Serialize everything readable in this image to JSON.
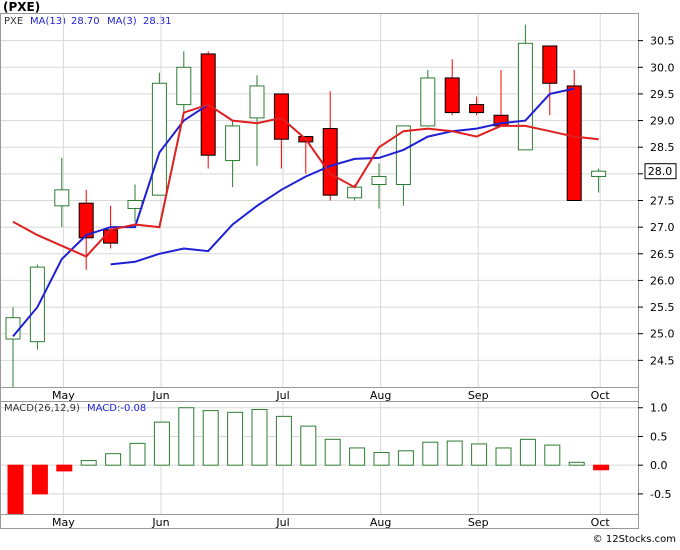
{
  "header": {
    "title": "(PXE)",
    "legend": {
      "symbol": "PXE",
      "ma13_label": "MA(13)",
      "ma13_value": "28.70",
      "ma3_label": "MA(3)",
      "ma3_value": "28.31"
    },
    "price_tag": "28.0"
  },
  "macd_legend": {
    "label": "MACD(26,12,9)",
    "value_label": "MACD:-0.08"
  },
  "footer": {
    "credit": "© 12Stocks.com"
  },
  "colors": {
    "up": "#2e7d32",
    "down": "#ff0000",
    "ma13": "#1f1fd6",
    "ma3": "#e02020",
    "macd_pos": "#2e7d32",
    "macd_neg": "#ff0000"
  },
  "chart_data": [
    {
      "type": "candlestick",
      "ylim": [
        24.0,
        31.0
      ],
      "yticks": [
        24.5,
        25.0,
        25.5,
        26.0,
        26.5,
        27.0,
        27.5,
        28.0,
        28.5,
        29.0,
        29.5,
        30.0,
        30.5
      ],
      "ytick_labels": [
        "24.5",
        "25.0",
        "25.5",
        "26.0",
        "26.5",
        "27.0",
        "27.5",
        "28.0",
        "28.5",
        "29.0",
        "29.5",
        "30.0",
        "30.5"
      ],
      "xtick_labels": [
        "May",
        "Jun",
        "Jul",
        "Aug",
        "Sep",
        "Oct"
      ],
      "xtick_index": [
        1,
        5,
        10,
        14,
        18,
        23
      ],
      "grid": true,
      "candles": [
        {
          "o": 24.9,
          "h": 25.5,
          "l": 24.0,
          "c": 25.3
        },
        {
          "o": 24.85,
          "h": 26.3,
          "l": 24.7,
          "c": 26.25
        },
        {
          "o": 27.4,
          "h": 28.3,
          "l": 27.0,
          "c": 27.7
        },
        {
          "o": 27.45,
          "h": 27.7,
          "l": 26.2,
          "c": 26.8
        },
        {
          "o": 26.95,
          "h": 27.4,
          "l": 26.6,
          "c": 26.7
        },
        {
          "o": 27.35,
          "h": 27.8,
          "l": 27.1,
          "c": 27.5
        },
        {
          "o": 27.6,
          "h": 29.9,
          "l": 27.6,
          "c": 29.7
        },
        {
          "o": 29.3,
          "h": 30.3,
          "l": 29.15,
          "c": 30.0
        },
        {
          "o": 30.25,
          "h": 30.3,
          "l": 28.1,
          "c": 28.35
        },
        {
          "o": 28.25,
          "h": 29.0,
          "l": 27.75,
          "c": 28.9
        },
        {
          "o": 29.05,
          "h": 29.85,
          "l": 28.15,
          "c": 29.65
        },
        {
          "o": 29.5,
          "h": 29.5,
          "l": 28.1,
          "c": 28.65
        },
        {
          "o": 28.7,
          "h": 28.7,
          "l": 28.0,
          "c": 28.6
        },
        {
          "o": 28.85,
          "h": 29.55,
          "l": 27.5,
          "c": 27.6
        },
        {
          "o": 27.55,
          "h": 27.8,
          "l": 27.5,
          "c": 27.75
        },
        {
          "o": 27.8,
          "h": 28.2,
          "l": 27.35,
          "c": 27.95
        },
        {
          "o": 27.8,
          "h": 28.9,
          "l": 27.4,
          "c": 28.9
        },
        {
          "o": 28.9,
          "h": 29.95,
          "l": 28.9,
          "c": 29.8
        },
        {
          "o": 29.8,
          "h": 30.15,
          "l": 29.1,
          "c": 29.15
        },
        {
          "o": 29.3,
          "h": 29.45,
          "l": 29.1,
          "c": 29.15
        },
        {
          "o": 29.1,
          "h": 29.95,
          "l": 28.9,
          "c": 28.9
        },
        {
          "o": 28.45,
          "h": 30.8,
          "l": 28.45,
          "c": 30.45
        },
        {
          "o": 30.4,
          "h": 30.4,
          "l": 29.1,
          "c": 29.7
        },
        {
          "o": 29.65,
          "h": 29.95,
          "l": 27.5,
          "c": 27.5
        },
        {
          "o": 27.95,
          "h": 28.1,
          "l": 27.65,
          "c": 28.05
        }
      ],
      "series": [
        {
          "name": "MA(13)",
          "start_index": 0,
          "values": [
            24.95,
            25.5,
            26.4,
            26.85,
            27.0,
            27.0,
            28.4,
            29.0,
            29.3,
            null,
            null,
            null,
            null,
            null,
            null,
            null,
            null,
            null,
            null,
            null,
            null,
            null,
            null,
            null,
            null
          ]
        },
        {
          "name": "MA(13) long",
          "start_index": 0,
          "values": [
            null,
            null,
            null,
            null,
            26.3,
            26.35,
            26.5,
            26.6,
            26.55,
            27.05,
            27.4,
            27.7,
            27.95,
            28.15,
            28.28,
            28.3,
            28.45,
            28.7,
            28.8,
            28.85,
            28.95,
            29.0,
            29.5,
            29.6,
            null
          ]
        },
        {
          "name": "MA(3)",
          "start_index": 0,
          "values": [
            27.1,
            26.85,
            26.65,
            26.45,
            26.95,
            27.05,
            27.0,
            29.15,
            29.3,
            29.0,
            28.95,
            29.05,
            28.65,
            28.0,
            27.75,
            28.5,
            28.8,
            28.85,
            28.8,
            28.7,
            28.9,
            28.9,
            28.8,
            28.7,
            28.65
          ]
        }
      ]
    },
    {
      "type": "bar",
      "ylim": [
        -0.85,
        1.1
      ],
      "yticks": [
        -0.5,
        0.0,
        0.5,
        1.0
      ],
      "ytick_labels": [
        "-0.5",
        "0.0",
        "0.5",
        "1.0"
      ],
      "xtick_labels": [
        "May",
        "Jun",
        "Jul",
        "Aug",
        "Sep",
        "Oct"
      ],
      "xtick_index": [
        1,
        5,
        10,
        14,
        18,
        23
      ],
      "grid": true,
      "values": [
        -0.85,
        -0.5,
        -0.1,
        0.08,
        0.2,
        0.38,
        0.75,
        1.0,
        0.95,
        0.92,
        0.97,
        0.85,
        0.68,
        0.45,
        0.3,
        0.22,
        0.25,
        0.4,
        0.42,
        0.37,
        0.3,
        0.45,
        0.35,
        0.05,
        -0.08
      ]
    }
  ]
}
